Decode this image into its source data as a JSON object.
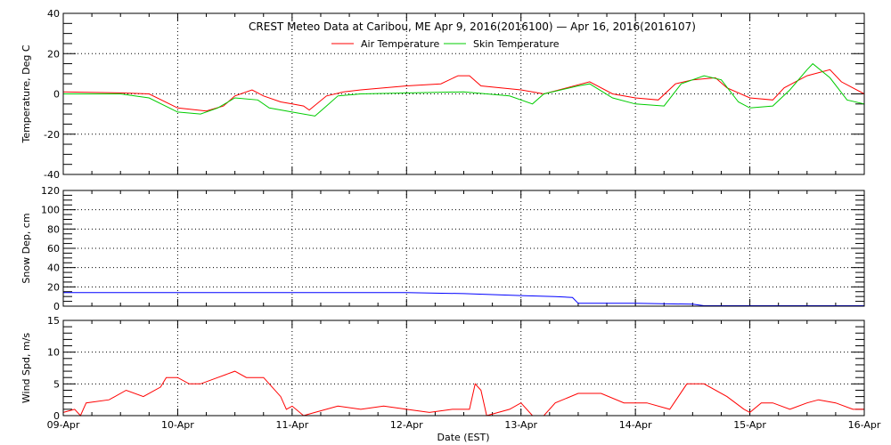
{
  "chart_data": [
    {
      "type": "line",
      "title": "CREST Meteo Data at Caribou, ME   Apr  9, 2016(2016100) — Apr 16, 2016(2016107)",
      "ylabel": "Temperature, Deg C",
      "ylim": [
        -40,
        40
      ],
      "yticks": [
        -40,
        -20,
        0,
        20,
        40
      ],
      "x_units": "days since 09-Apr 00:00",
      "series": [
        {
          "name": "Air Temperature",
          "color": "#ff0000",
          "x": [
            0,
            0.5,
            0.75,
            1.0,
            1.25,
            1.4,
            1.5,
            1.65,
            1.75,
            1.9,
            2.0,
            2.1,
            2.15,
            2.3,
            2.45,
            2.6,
            3.0,
            3.3,
            3.45,
            3.55,
            3.65,
            4.0,
            4.2,
            4.4,
            4.6,
            4.8,
            5.0,
            5.2,
            5.35,
            5.5,
            5.7,
            5.8,
            6.0,
            6.2,
            6.3,
            6.5,
            6.7,
            6.8,
            7.0
          ],
          "y": [
            1,
            0.5,
            0,
            -7,
            -8.5,
            -6,
            -1,
            2,
            -1,
            -4,
            -5,
            -6,
            -8,
            -1,
            1,
            2,
            4,
            5,
            9,
            9,
            4,
            2,
            0,
            3,
            6,
            0,
            -2,
            -3,
            5,
            7,
            8,
            3,
            -2,
            -3,
            3,
            9,
            12,
            6,
            0
          ]
        },
        {
          "name": "Skin Temperature",
          "color": "#00cc00",
          "x": [
            0,
            0.5,
            0.75,
            1.0,
            1.2,
            1.35,
            1.5,
            1.7,
            1.8,
            2.0,
            2.2,
            2.3,
            2.4,
            2.6,
            3.5,
            3.9,
            4.1,
            4.2,
            4.5,
            4.6,
            4.8,
            5.0,
            5.25,
            5.4,
            5.6,
            5.75,
            5.9,
            6.0,
            6.2,
            6.35,
            6.5,
            6.55,
            6.7,
            6.85,
            7.0
          ],
          "y": [
            0,
            0,
            -2,
            -9,
            -10,
            -7,
            -2,
            -3,
            -7,
            -9,
            -11,
            -6,
            -1,
            0,
            1,
            -1,
            -5,
            0,
            4,
            5,
            -2,
            -5,
            -6,
            5,
            9,
            7,
            -4,
            -7,
            -6,
            2,
            12,
            15,
            8,
            -3,
            -5
          ]
        }
      ]
    },
    {
      "type": "line",
      "ylabel": "Snow Dep, cm",
      "ylim": [
        0,
        120
      ],
      "yticks": [
        0,
        20,
        40,
        60,
        80,
        100,
        120
      ],
      "series": [
        {
          "name": "Snow Depth",
          "color": "#0000ff",
          "x": [
            0,
            1,
            2,
            3,
            3.5,
            4,
            4.3,
            4.45,
            4.5,
            5,
            5.5,
            5.6,
            6,
            7
          ],
          "y": [
            14,
            14,
            14,
            14,
            13,
            11,
            10,
            9,
            3,
            3,
            2,
            0.5,
            0.5,
            0.5
          ]
        }
      ]
    },
    {
      "type": "line",
      "ylabel": "Wind Spd, m/s",
      "ylim": [
        0,
        15
      ],
      "yticks": [
        0,
        5,
        10,
        15
      ],
      "xlabel": "Date (EST)",
      "xticks": [
        "09-Apr",
        "10-Apr",
        "11-Apr",
        "12-Apr",
        "13-Apr",
        "14-Apr",
        "15-Apr",
        "16-Apr"
      ],
      "series": [
        {
          "name": "Wind Speed",
          "color": "#ff0000",
          "x": [
            0,
            0.1,
            0.15,
            0.2,
            0.4,
            0.55,
            0.7,
            0.85,
            0.9,
            1.0,
            1.1,
            1.2,
            1.35,
            1.5,
            1.6,
            1.75,
            1.8,
            1.9,
            1.95,
            2.0,
            2.1,
            2.2,
            2.4,
            2.6,
            2.8,
            3.0,
            3.2,
            3.4,
            3.55,
            3.6,
            3.65,
            3.7,
            3.9,
            4.0,
            4.1,
            4.2,
            4.3,
            4.5,
            4.7,
            4.9,
            5.1,
            5.3,
            5.45,
            5.6,
            5.8,
            5.95,
            6.0,
            6.1,
            6.2,
            6.35,
            6.5,
            6.6,
            6.75,
            6.9,
            7.0
          ],
          "y": [
            0.5,
            1,
            0,
            2,
            2.5,
            4,
            3,
            4.5,
            6,
            6,
            5,
            5,
            6,
            7,
            6,
            6,
            5,
            3,
            1,
            1.5,
            0,
            0.5,
            1.5,
            1,
            1.5,
            1,
            0.5,
            1,
            1,
            5,
            4,
            0,
            1,
            2,
            0,
            0,
            2,
            3.5,
            3.5,
            2,
            2,
            1,
            5,
            5,
            3,
            1,
            0.5,
            2,
            2,
            1,
            2,
            2.5,
            2,
            1,
            1
          ]
        }
      ]
    }
  ]
}
